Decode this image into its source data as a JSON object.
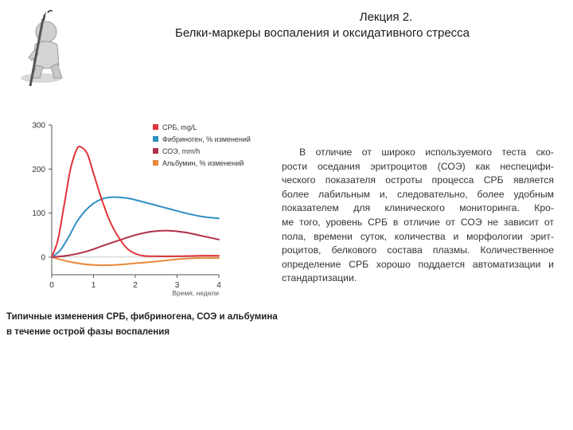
{
  "header": {
    "line1": "Лекция 2.",
    "line2": "Белки-маркеры воспаления и оксидативного стресса"
  },
  "caption": {
    "line1": "Типичные изменения СРБ, фибриногена, СОЭ и альбумина",
    "line2": "в течение острой фазы воспаления"
  },
  "body_text": {
    "lines": [
      "В отличие от широко используемого теста ско-",
      "рости оседания эритроцитов (СОЭ) как неспецифи-",
      "ческого показателя остроты процесса СРБ является",
      "более лабильным и, следовательно, более удобным",
      "показателем для клинического мониторинга. Кро-",
      "ме того, уровень СРБ в отличие от СОЭ не зависит от",
      "пола, времени суток, количества и морфологии эрит-",
      "роцитов, белкового состава плазмы. Количественное",
      "определение СРБ хорошо поддается автоматизации и",
      "стандартизации."
    ]
  },
  "colors": {
    "crp": "#e0343a",
    "fibrinogen": "#2f8fc4",
    "esr": "#b0304a",
    "albumin": "#e8893a",
    "axis": "#555555"
  },
  "chart_data": {
    "type": "line",
    "xlabel": "Время, недели",
    "xlim": [
      0,
      4
    ],
    "ylim": [
      -40,
      300
    ],
    "xticks": [
      "0",
      "1",
      "2",
      "3",
      "4"
    ],
    "yticks": [
      "300",
      "200",
      "100",
      "0"
    ],
    "legend_position": "top-right",
    "grid": false,
    "series": [
      {
        "name": "СРБ, mg/L",
        "color_key": "crp",
        "x": [
          0,
          0.15,
          0.3,
          0.45,
          0.6,
          0.7,
          0.85,
          1.0,
          1.2,
          1.4,
          1.6,
          1.8,
          2.0,
          2.2,
          2.5,
          3.0,
          3.5,
          4.0
        ],
        "y": [
          0,
          40,
          120,
          200,
          245,
          250,
          235,
          190,
          130,
          80,
          45,
          20,
          8,
          3,
          2,
          2,
          3,
          3
        ]
      },
      {
        "name": "Фибриноген, % изменений",
        "color_key": "fibrinogen",
        "x": [
          0,
          0.2,
          0.4,
          0.6,
          0.8,
          1.0,
          1.2,
          1.4,
          1.6,
          1.8,
          2.0,
          2.4,
          2.8,
          3.2,
          3.6,
          4.0
        ],
        "y": [
          0,
          15,
          45,
          80,
          105,
          122,
          132,
          136,
          136,
          134,
          130,
          120,
          110,
          100,
          92,
          88
        ]
      },
      {
        "name": "СОЭ, mm/h",
        "color_key": "esr",
        "x": [
          0,
          0.4,
          0.8,
          1.2,
          1.6,
          2.0,
          2.4,
          2.8,
          3.2,
          3.6,
          4.0
        ],
        "y": [
          0,
          4,
          12,
          25,
          38,
          50,
          58,
          60,
          56,
          48,
          40
        ]
      },
      {
        "name": "Альбумин, % изменений",
        "color_key": "albumin",
        "x": [
          0,
          0.5,
          1.0,
          1.5,
          2.0,
          2.5,
          3.0,
          3.5,
          4.0
        ],
        "y": [
          0,
          -12,
          -18,
          -18,
          -14,
          -10,
          -5,
          -2,
          -2
        ]
      }
    ]
  }
}
